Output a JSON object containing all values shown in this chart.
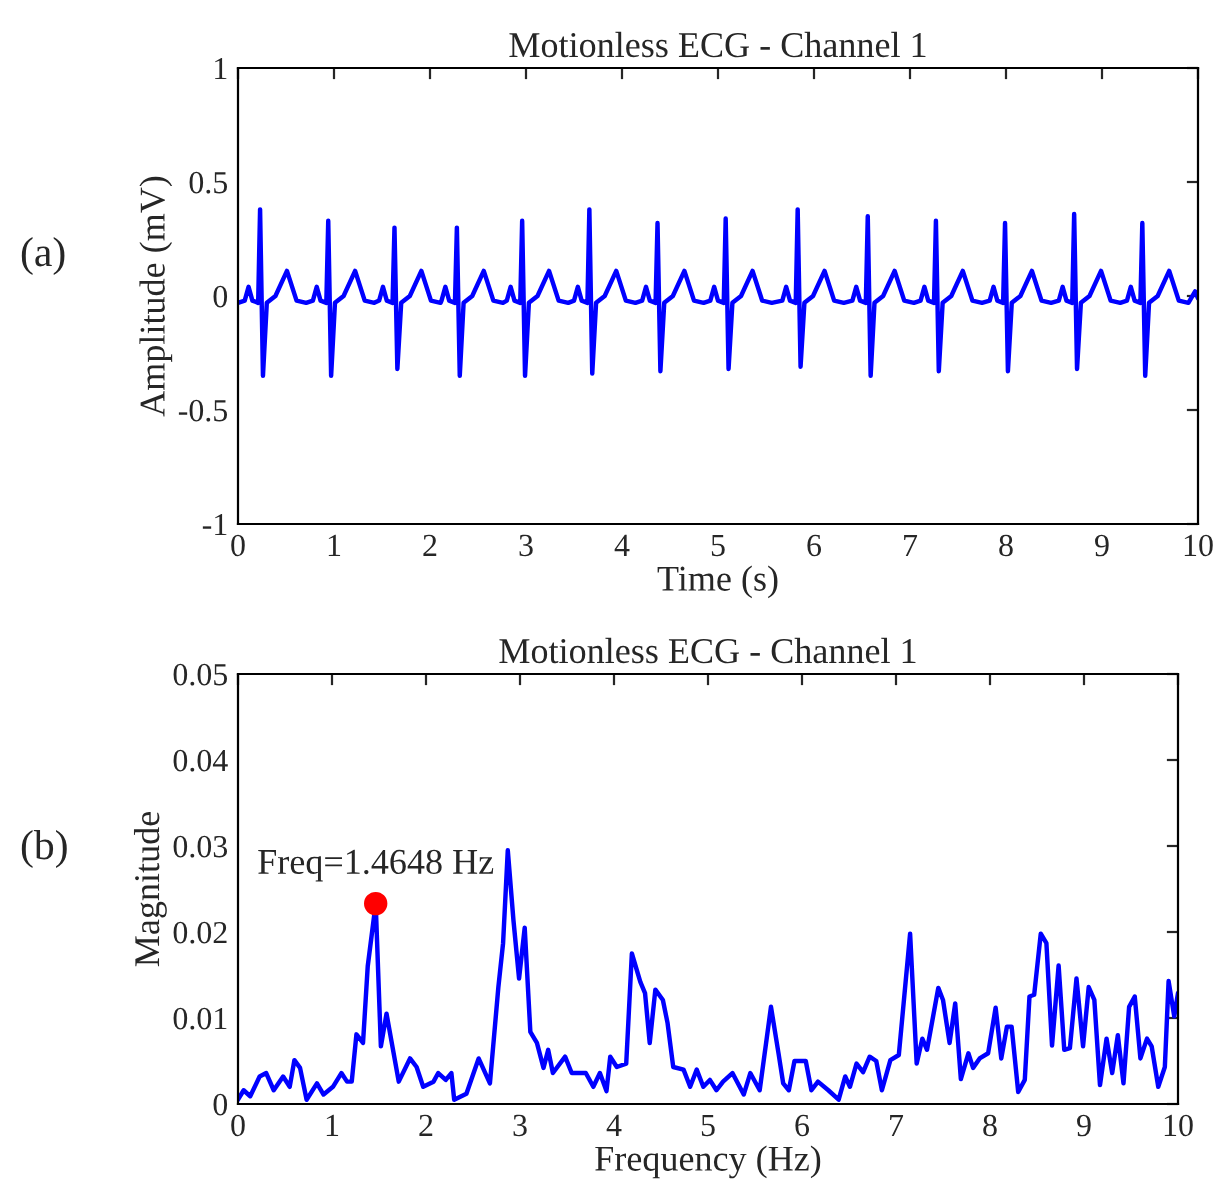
{
  "chart_data": [
    {
      "type": "line",
      "title": "Motionless ECG - Channel 1",
      "xlabel": "Time (s)",
      "ylabel": "Amplitude (mV)",
      "annotations": [
        "(a)"
      ],
      "xlim": [
        0,
        10
      ],
      "ylim": [
        -1,
        1
      ],
      "xticks": [
        0,
        1,
        2,
        3,
        4,
        5,
        6,
        7,
        8,
        9,
        10
      ],
      "yticks": [
        {
          "value": -1,
          "label": "-1"
        },
        {
          "value": -0.5,
          "label": "-0.5"
        },
        0,
        0.5,
        1
      ],
      "grid": false,
      "legend": false,
      "series": [
        {
          "color": "#0000ff",
          "x": [
            0,
            0.07,
            0.11,
            0.15,
            0.21,
            0.23,
            0.26,
            0.3,
            0.39,
            0.51,
            0.61,
            0.71,
            0.78,
            0.82,
            0.86,
            0.92,
            0.94,
            0.97,
            1.01,
            1.1,
            1.22,
            1.32,
            1.42,
            1.47,
            1.51,
            1.55,
            1.61,
            1.63,
            1.66,
            1.7,
            1.79,
            1.91,
            2.01,
            2.11,
            2.12,
            2.16,
            2.2,
            2.26,
            2.28,
            2.31,
            2.35,
            2.44,
            2.56,
            2.66,
            2.76,
            2.8,
            2.84,
            2.88,
            2.94,
            2.96,
            2.99,
            3.03,
            3.12,
            3.24,
            3.34,
            3.44,
            3.5,
            3.54,
            3.58,
            3.64,
            3.66,
            3.69,
            3.73,
            3.82,
            3.94,
            4.04,
            4.14,
            4.21,
            4.25,
            4.29,
            4.35,
            4.37,
            4.4,
            4.44,
            4.53,
            4.65,
            4.75,
            4.85,
            4.92,
            4.96,
            5.0,
            5.06,
            5.08,
            5.11,
            5.15,
            5.24,
            5.36,
            5.46,
            5.56,
            5.67,
            5.71,
            5.75,
            5.81,
            5.83,
            5.86,
            5.9,
            5.99,
            6.11,
            6.21,
            6.31,
            6.4,
            6.44,
            6.48,
            6.54,
            6.56,
            6.59,
            6.63,
            6.72,
            6.84,
            6.94,
            7.04,
            7.11,
            7.15,
            7.19,
            7.25,
            7.27,
            7.3,
            7.34,
            7.43,
            7.55,
            7.65,
            7.75,
            7.83,
            7.87,
            7.91,
            7.97,
            7.99,
            8.02,
            8.06,
            8.15,
            8.27,
            8.37,
            8.47,
            8.55,
            8.59,
            8.63,
            8.69,
            8.71,
            8.74,
            8.78,
            8.87,
            8.99,
            9.09,
            9.19,
            9.26,
            9.3,
            9.34,
            9.4,
            9.42,
            9.45,
            9.49,
            9.58,
            9.7,
            9.8,
            9.9,
            9.97,
            10
          ],
          "values": [
            -0.03,
            -0.02,
            0.04,
            -0.02,
            -0.03,
            0.38,
            -0.35,
            -0.03,
            0,
            0.11,
            -0.02,
            -0.03,
            -0.02,
            0.04,
            -0.02,
            -0.03,
            0.33,
            -0.35,
            -0.03,
            0,
            0.11,
            -0.02,
            -0.03,
            -0.02,
            0.04,
            -0.02,
            -0.03,
            0.3,
            -0.32,
            -0.03,
            0,
            0.11,
            -0.02,
            -0.03,
            -0.02,
            0.04,
            -0.02,
            -0.03,
            0.3,
            -0.35,
            -0.03,
            0,
            0.11,
            -0.02,
            -0.03,
            -0.02,
            0.04,
            -0.02,
            -0.03,
            0.33,
            -0.35,
            -0.03,
            0,
            0.11,
            -0.02,
            -0.03,
            -0.02,
            0.04,
            -0.02,
            -0.03,
            0.38,
            -0.34,
            -0.03,
            0,
            0.11,
            -0.02,
            -0.03,
            -0.02,
            0.04,
            -0.02,
            -0.03,
            0.32,
            -0.33,
            -0.03,
            0,
            0.11,
            -0.02,
            -0.03,
            -0.02,
            0.04,
            -0.02,
            -0.03,
            0.34,
            -0.32,
            -0.03,
            0,
            0.11,
            -0.02,
            -0.03,
            -0.02,
            0.04,
            -0.02,
            -0.03,
            0.38,
            -0.31,
            -0.03,
            0,
            0.11,
            -0.02,
            -0.03,
            -0.02,
            0.04,
            -0.02,
            -0.03,
            0.35,
            -0.35,
            -0.03,
            0,
            0.11,
            -0.02,
            -0.03,
            -0.02,
            0.04,
            -0.02,
            -0.03,
            0.33,
            -0.33,
            -0.03,
            0,
            0.11,
            -0.02,
            -0.03,
            -0.02,
            0.04,
            -0.02,
            -0.03,
            0.32,
            -0.33,
            -0.03,
            0,
            0.11,
            -0.02,
            -0.03,
            -0.02,
            0.04,
            -0.02,
            -0.03,
            0.36,
            -0.32,
            -0.03,
            0,
            0.11,
            -0.02,
            -0.03,
            -0.02,
            0.04,
            -0.02,
            -0.03,
            0.32,
            -0.35,
            -0.03,
            0,
            0.11,
            -0.02,
            -0.03,
            0.02,
            -0.01
          ]
        }
      ]
    },
    {
      "type": "line",
      "title": "Motionless ECG - Channel 1",
      "xlabel": "Frequency (Hz)",
      "ylabel": "Magnitude",
      "annotations": [
        "(b)",
        {
          "text": "Freq=1.4648 Hz",
          "x": 1.4648,
          "y": 0.0233
        }
      ],
      "xlim": [
        0,
        10
      ],
      "ylim": [
        0,
        0.05
      ],
      "xticks": [
        0,
        1,
        2,
        3,
        4,
        5,
        6,
        7,
        8,
        9,
        10
      ],
      "yticks": [
        0,
        0.01,
        0.02,
        0.03,
        0.04,
        0.05
      ],
      "grid": false,
      "legend": false,
      "series": [
        {
          "color": "#0000ff",
          "x": [
            0,
            0.06,
            0.13,
            0.23,
            0.3,
            0.38,
            0.48,
            0.55,
            0.6,
            0.66,
            0.73,
            0.84,
            0.91,
            1.01,
            1.1,
            1.16,
            1.21,
            1.26,
            1.33,
            1.38,
            1.4648,
            1.52,
            1.58,
            1.71,
            1.83,
            1.9,
            1.97,
            2.08,
            2.13,
            2.21,
            2.27,
            2.3,
            2.43,
            2.56,
            2.68,
            2.77,
            2.82,
            2.87,
            2.93,
            2.99,
            3.05,
            3.11,
            3.18,
            3.25,
            3.3,
            3.35,
            3.48,
            3.55,
            3.7,
            3.78,
            3.85,
            3.92,
            3.96,
            4.03,
            4.13,
            4.19,
            4.28,
            4.33,
            4.38,
            4.44,
            4.52,
            4.57,
            4.63,
            4.74,
            4.81,
            4.88,
            4.95,
            5.02,
            5.09,
            5.16,
            5.26,
            5.38,
            5.45,
            5.55,
            5.67,
            5.75,
            5.8,
            5.86,
            5.92,
            6.04,
            6.1,
            6.17,
            6.28,
            6.39,
            6.46,
            6.51,
            6.58,
            6.65,
            6.72,
            6.79,
            6.85,
            6.94,
            7.03,
            7.15,
            7.22,
            7.28,
            7.33,
            7.45,
            7.5,
            7.57,
            7.63,
            7.69,
            7.77,
            7.82,
            7.89,
            7.98,
            8.06,
            8.12,
            8.18,
            8.23,
            8.3,
            8.37,
            8.42,
            8.47,
            8.54,
            8.6,
            8.66,
            8.73,
            8.79,
            8.85,
            8.92,
            8.99,
            9.05,
            9.11,
            9.17,
            9.24,
            9.3,
            9.36,
            9.42,
            9.48,
            9.54,
            9.6,
            9.67,
            9.72,
            9.79,
            9.86,
            9.9,
            9.96,
            10
          ],
          "values": [
            0.0005,
            0.0016,
            0.0009,
            0.0032,
            0.0036,
            0.0016,
            0.0032,
            0.002,
            0.0051,
            0.0042,
            0.0005,
            0.0024,
            0.0011,
            0.002,
            0.0036,
            0.0026,
            0.0026,
            0.0081,
            0.0071,
            0.016,
            0.0233,
            0.0067,
            0.0105,
            0.0026,
            0.0053,
            0.0043,
            0.002,
            0.0026,
            0.0036,
            0.0028,
            0.0036,
            0.0005,
            0.0012,
            0.0053,
            0.0024,
            0.0136,
            0.0187,
            0.0295,
            0.0214,
            0.0146,
            0.0205,
            0.0084,
            0.0071,
            0.0042,
            0.0063,
            0.0036,
            0.0055,
            0.0036,
            0.0036,
            0.002,
            0.0036,
            0.0015,
            0.0055,
            0.0043,
            0.0047,
            0.0175,
            0.0142,
            0.0129,
            0.0071,
            0.0133,
            0.0121,
            0.0094,
            0.0043,
            0.004,
            0.002,
            0.004,
            0.002,
            0.0028,
            0.0016,
            0.0026,
            0.0036,
            0.0011,
            0.0036,
            0.0016,
            0.0113,
            0.0059,
            0.0024,
            0.0016,
            0.005,
            0.005,
            0.0016,
            0.0026,
            0.0016,
            0.0005,
            0.0032,
            0.002,
            0.0047,
            0.0037,
            0.0055,
            0.005,
            0.0016,
            0.0051,
            0.0057,
            0.0198,
            0.0047,
            0.0076,
            0.0063,
            0.0135,
            0.0121,
            0.0071,
            0.0117,
            0.0029,
            0.0059,
            0.0042,
            0.0053,
            0.0059,
            0.0112,
            0.0053,
            0.009,
            0.009,
            0.0014,
            0.0028,
            0.0125,
            0.0127,
            0.0198,
            0.0187,
            0.0068,
            0.0161,
            0.0063,
            0.0065,
            0.0146,
            0.0067,
            0.0136,
            0.0121,
            0.0022,
            0.0076,
            0.0036,
            0.008,
            0.0024,
            0.0113,
            0.0125,
            0.0053,
            0.0076,
            0.0067,
            0.002,
            0.0043,
            0.0143,
            0.0102,
            0.0129
          ]
        },
        {
          "type": "scatter",
          "color": "#ff0000",
          "marker": "circle",
          "x": [
            1.4648
          ],
          "values": [
            0.0233
          ]
        }
      ]
    }
  ]
}
